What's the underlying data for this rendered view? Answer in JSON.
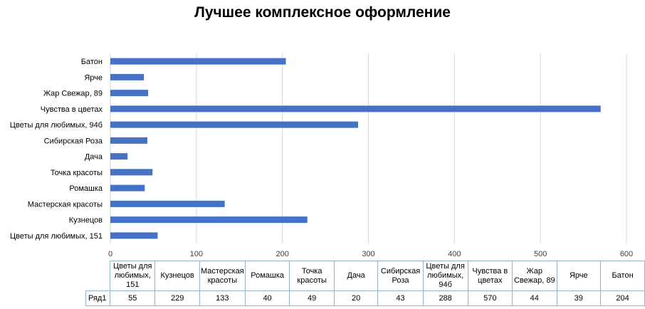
{
  "chart_data": {
    "type": "bar",
    "orientation": "horizontal",
    "title": "Лучшее комплексное оформление",
    "categories": [
      "Цветы для любимых, 151",
      "Кузнецов",
      "Мастерская красоты",
      "Ромашка",
      "Точка красоты",
      "Дача",
      "Сибирская Роза",
      "Цветы для любимых, 94б",
      "Чувства в цветах",
      "Жар Свежар, 89",
      "Ярче",
      "Батон"
    ],
    "table_headers": [
      "Цветы для любимых, 151",
      "Кузнецов",
      "Мастерская красоты",
      "Ромашка",
      "Точка красоты",
      "Дача",
      "Сибирская Роза",
      "Цветы для любимых, 94б",
      "Чувства в цветах",
      "Жар Свежар, 89",
      "Ярче",
      "Батон"
    ],
    "series": [
      {
        "name": "Ряд1",
        "values": [
          55,
          229,
          133,
          40,
          49,
          20,
          43,
          288,
          570,
          44,
          39,
          204
        ],
        "color": "#4472c4"
      }
    ],
    "xlim": [
      0,
      600
    ],
    "xticks": [
      0,
      100,
      200,
      300,
      400,
      500,
      600
    ],
    "grid": true,
    "legend": "none",
    "data_table": true
  }
}
